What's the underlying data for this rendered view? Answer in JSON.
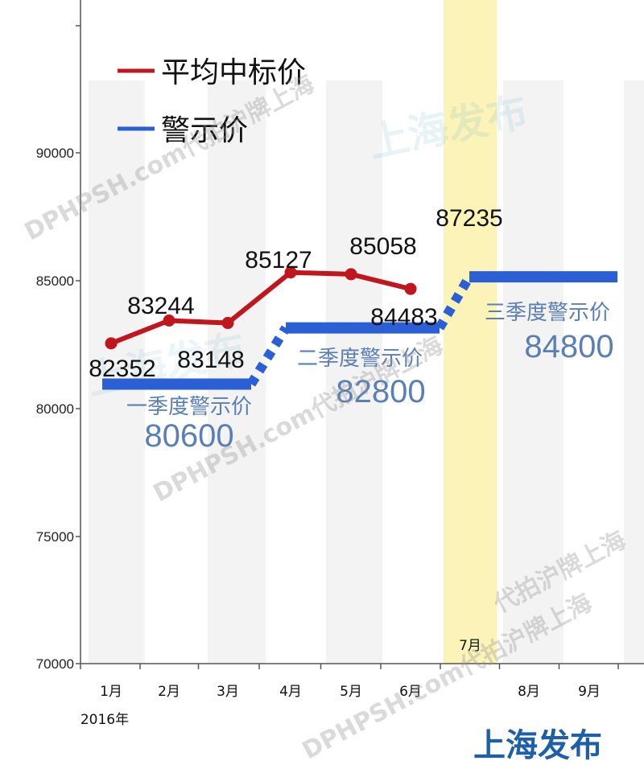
{
  "chart_data": {
    "type": "line",
    "title": "",
    "categories": [
      "1月",
      "2月",
      "3月",
      "4月",
      "5月",
      "6月",
      "7月",
      "8月",
      "9月"
    ],
    "year_label": "2016年",
    "y_ticks": [
      70000,
      75000,
      80000,
      85000,
      90000
    ],
    "ylim": [
      70000,
      90000
    ],
    "series": [
      {
        "name": "平均中标价",
        "color": "#c0161d",
        "values": [
          82352,
          83244,
          83148,
          85127,
          85058,
          84483,
          87235,
          null,
          null
        ]
      }
    ],
    "legend": {
      "position": "top-left",
      "items": [
        {
          "label": "平均中标价",
          "color": "#c0161d"
        },
        {
          "label": "警示价",
          "color": "#2a5fd6"
        }
      ]
    },
    "warning_prices": [
      {
        "label": "一季度警示价",
        "value": 80600,
        "value_text": "80600",
        "months": [
          "1月",
          "2月",
          "3月"
        ]
      },
      {
        "label": "二季度警示价",
        "value": 82800,
        "value_text": "82800",
        "months": [
          "4月",
          "5月",
          "6月"
        ]
      },
      {
        "label": "三季度警示价",
        "value": 84800,
        "value_text": "84800",
        "months": [
          "7月",
          "8月",
          "9月"
        ]
      }
    ],
    "highlight_month": "7月",
    "highlight_color": "#fbf3b8",
    "warning_color": "#2a5fd6",
    "grid": false
  },
  "brand": "上海发布",
  "watermarks": [
    "DPHPSH.com代拍沪牌上海",
    "DPHPSH.com代拍沪牌上海",
    "上海发布",
    "上海发布",
    "代拍沪牌上海"
  ]
}
